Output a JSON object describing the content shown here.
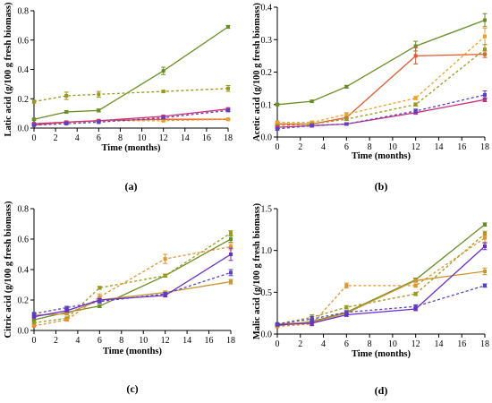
{
  "figure": {
    "colors": {
      "green": "#6b8e23",
      "orange": "#e67e22",
      "goldenrod": "#c8962f",
      "purple": "#6a2ccf",
      "pink": "#c8327a",
      "redorange": "#e8552a"
    }
  },
  "chart_data": [
    {
      "type": "line",
      "panel_label": "(a)",
      "xlabel": "Time (months)",
      "ylabel": "Latic acid (g/100 g fresh biomass)",
      "xlim": [
        0,
        18
      ],
      "ylim": [
        0,
        0.8
      ],
      "xticks": [
        0,
        2,
        4,
        6,
        8,
        10,
        12,
        14,
        16,
        18
      ],
      "yticks": [
        0.0,
        0.2,
        0.4,
        0.6,
        0.8
      ],
      "x": [
        0,
        3,
        6,
        12,
        18
      ],
      "series": [
        {
          "color": "#6b8e23",
          "dashed": false,
          "values": [
            0.06,
            0.11,
            0.12,
            0.39,
            0.69
          ],
          "errors": [
            0.005,
            0.008,
            0.01,
            0.025,
            0.01
          ]
        },
        {
          "color": "#9a9a1a",
          "dashed": true,
          "values": [
            0.18,
            0.22,
            0.23,
            0.25,
            0.27
          ],
          "errors": [
            0.01,
            0.025,
            0.02,
            0.005,
            0.02
          ]
        },
        {
          "color": "#e8552a",
          "dashed": false,
          "values": [
            0.02,
            0.04,
            0.05,
            0.06,
            0.06
          ],
          "errors": [
            0.003,
            0.005,
            0.005,
            0.004,
            0.004
          ]
        },
        {
          "color": "#f0a020",
          "dashed": true,
          "values": [
            0.03,
            0.04,
            0.05,
            0.05,
            0.06
          ],
          "errors": [
            0.003,
            0.004,
            0.004,
            0.004,
            0.004
          ]
        },
        {
          "color": "#c8327a",
          "dashed": false,
          "values": [
            0.03,
            0.04,
            0.05,
            0.08,
            0.13
          ],
          "errors": [
            0.003,
            0.006,
            0.005,
            0.006,
            0.008
          ]
        },
        {
          "color": "#5a3fc8",
          "dashed": true,
          "values": [
            0.02,
            0.03,
            0.04,
            0.07,
            0.12
          ],
          "errors": [
            0.003,
            0.005,
            0.004,
            0.005,
            0.008
          ]
        }
      ]
    },
    {
      "type": "line",
      "panel_label": "(b)",
      "xlabel": "Time (months)",
      "ylabel": "Acetic acid (g/100 g fresh biomass)",
      "xlim": [
        0,
        18
      ],
      "ylim": [
        0,
        0.4
      ],
      "xticks": [
        0,
        2,
        4,
        6,
        8,
        10,
        12,
        14,
        16,
        18
      ],
      "yticks": [
        0.0,
        0.1,
        0.2,
        0.3,
        0.4
      ],
      "x": [
        0,
        3,
        6,
        12,
        18
      ],
      "series": [
        {
          "color": "#6b8e23",
          "dashed": false,
          "values": [
            0.1,
            0.11,
            0.155,
            0.28,
            0.36
          ],
          "errors": [
            0.004,
            0.003,
            0.004,
            0.015,
            0.02
          ]
        },
        {
          "color": "#e8552a",
          "dashed": false,
          "values": [
            0.04,
            0.04,
            0.06,
            0.25,
            0.255
          ],
          "errors": [
            0.004,
            0.004,
            0.004,
            0.025,
            0.01
          ]
        },
        {
          "color": "#f0a020",
          "dashed": true,
          "values": [
            0.045,
            0.045,
            0.07,
            0.12,
            0.31
          ],
          "errors": [
            0.004,
            0.004,
            0.005,
            0.005,
            0.025
          ]
        },
        {
          "color": "#9a9a1a",
          "dashed": true,
          "values": [
            0.035,
            0.04,
            0.055,
            0.1,
            0.27
          ],
          "errors": [
            0.004,
            0.004,
            0.004,
            0.005,
            0.015
          ]
        },
        {
          "color": "#c8327a",
          "dashed": false,
          "values": [
            0.03,
            0.035,
            0.04,
            0.075,
            0.115
          ],
          "errors": [
            0.004,
            0.004,
            0.004,
            0.005,
            0.006
          ]
        },
        {
          "color": "#5a3fc8",
          "dashed": true,
          "values": [
            0.025,
            0.035,
            0.04,
            0.08,
            0.13
          ],
          "errors": [
            0.004,
            0.004,
            0.004,
            0.006,
            0.012
          ]
        }
      ]
    },
    {
      "type": "line",
      "panel_label": "(c)",
      "xlabel": "Time (months)",
      "ylabel": "Citric acid (g/100 g fresh biomass)",
      "xlim": [
        0,
        18
      ],
      "ylim": [
        0,
        0.8
      ],
      "xticks": [
        0,
        2,
        4,
        6,
        8,
        10,
        12,
        14,
        16,
        18
      ],
      "yticks": [
        0.0,
        0.2,
        0.4,
        0.6,
        0.8
      ],
      "x": [
        0,
        3,
        6,
        12,
        18
      ],
      "series": [
        {
          "color": "#6b8e23",
          "dashed": false,
          "values": [
            0.07,
            0.12,
            0.16,
            0.36,
            0.6
          ],
          "errors": [
            0.005,
            0.008,
            0.01,
            0.01,
            0.02
          ]
        },
        {
          "color": "#9a9a1a",
          "dashed": true,
          "values": [
            0.05,
            0.08,
            0.28,
            0.36,
            0.64
          ],
          "errors": [
            0.005,
            0.008,
            0.01,
            0.01,
            0.015
          ]
        },
        {
          "color": "#e8902a",
          "dashed": true,
          "values": [
            0.03,
            0.07,
            0.22,
            0.47,
            0.55
          ],
          "errors": [
            0.005,
            0.008,
            0.02,
            0.03,
            0.02
          ]
        },
        {
          "color": "#c8962f",
          "dashed": false,
          "values": [
            0.1,
            0.11,
            0.2,
            0.25,
            0.32
          ],
          "errors": [
            0.005,
            0.008,
            0.01,
            0.01,
            0.015
          ]
        },
        {
          "color": "#6a2ccf",
          "dashed": false,
          "values": [
            0.09,
            0.13,
            0.2,
            0.23,
            0.5
          ],
          "errors": [
            0.005,
            0.008,
            0.01,
            0.01,
            0.04
          ]
        },
        {
          "color": "#5a3fc8",
          "dashed": true,
          "values": [
            0.11,
            0.15,
            0.19,
            0.24,
            0.38
          ],
          "errors": [
            0.005,
            0.008,
            0.01,
            0.01,
            0.02
          ]
        }
      ]
    },
    {
      "type": "line",
      "panel_label": "(d)",
      "xlabel": "Time (months)",
      "ylabel": "Malic acid (g/100 g fresh biomass)",
      "xlim": [
        0,
        18
      ],
      "ylim": [
        0,
        1.5
      ],
      "xticks": [
        0,
        2,
        4,
        6,
        8,
        10,
        12,
        14,
        16,
        18
      ],
      "yticks": [
        0.0,
        0.5,
        1.0,
        1.5
      ],
      "x": [
        0,
        3,
        6,
        12,
        18
      ],
      "series": [
        {
          "color": "#6b8e23",
          "dashed": false,
          "values": [
            0.1,
            0.15,
            0.26,
            0.65,
            1.31
          ],
          "errors": [
            0.01,
            0.03,
            0.02,
            0.02,
            0.02
          ]
        },
        {
          "color": "#9a9a1a",
          "dashed": true,
          "values": [
            0.12,
            0.2,
            0.32,
            0.48,
            1.2
          ],
          "errors": [
            0.01,
            0.03,
            0.02,
            0.02,
            0.03
          ]
        },
        {
          "color": "#e8902a",
          "dashed": true,
          "values": [
            0.09,
            0.12,
            0.58,
            0.58,
            1.15
          ],
          "errors": [
            0.01,
            0.02,
            0.03,
            0.02,
            0.05
          ]
        },
        {
          "color": "#c8962f",
          "dashed": false,
          "values": [
            0.12,
            0.14,
            0.25,
            0.64,
            0.75
          ],
          "errors": [
            0.01,
            0.02,
            0.02,
            0.02,
            0.04
          ]
        },
        {
          "color": "#6a2ccf",
          "dashed": false,
          "values": [
            0.11,
            0.13,
            0.23,
            0.3,
            1.05
          ],
          "errors": [
            0.01,
            0.03,
            0.02,
            0.02,
            0.04
          ]
        },
        {
          "color": "#5a3fc8",
          "dashed": true,
          "values": [
            0.12,
            0.18,
            0.26,
            0.33,
            0.58
          ],
          "errors": [
            0.01,
            0.03,
            0.02,
            0.02,
            0.02
          ]
        }
      ]
    }
  ]
}
